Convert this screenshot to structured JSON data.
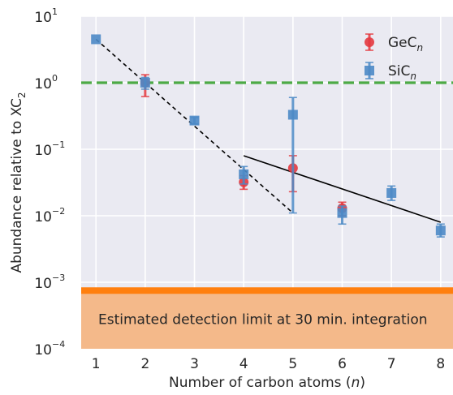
{
  "chart_data": {
    "type": "scatter",
    "xlabel_parts": [
      "Number of carbon atoms (",
      "n",
      ")"
    ],
    "ylabel_parts": [
      "Abundance relative to XC",
      "2"
    ],
    "x": [
      1,
      2,
      3,
      4,
      5,
      6,
      7,
      8
    ],
    "xlim": [
      0.7,
      8.25
    ],
    "ylim": [
      0.0001,
      10
    ],
    "yscale": "log",
    "grid": true,
    "legend_position": "top-right",
    "y_ticks": [
      {
        "value": 10,
        "base": "10",
        "exp": "1"
      },
      {
        "value": 1,
        "base": "10",
        "exp": "0"
      },
      {
        "value": 0.1,
        "base": "10",
        "exp": "−1"
      },
      {
        "value": 0.01,
        "base": "10",
        "exp": "−2"
      },
      {
        "value": 0.001,
        "base": "10",
        "exp": "−3"
      },
      {
        "value": 0.0001,
        "base": "10",
        "exp": "−4"
      }
    ],
    "x_ticks": [
      "1",
      "2",
      "3",
      "4",
      "5",
      "6",
      "7",
      "8"
    ],
    "series": [
      {
        "name_parts": [
          "GeC",
          "n"
        ],
        "marker": "circle",
        "color": "#e4393f",
        "points": [
          {
            "x": 2,
            "y": 1.0,
            "err_lo": 0.62,
            "err_hi": 1.32
          },
          {
            "x": 4,
            "y": 0.032,
            "err_lo": 0.025,
            "err_hi": 0.04
          },
          {
            "x": 5,
            "y": 0.052,
            "err_lo": 0.023,
            "err_hi": 0.08
          },
          {
            "x": 6,
            "y": 0.013,
            "err_lo": 0.01,
            "err_hi": 0.016
          }
        ]
      },
      {
        "name_parts": [
          "SiC",
          "n"
        ],
        "marker": "square",
        "color": "#4c8ac6",
        "points": [
          {
            "x": 1,
            "y": 4.5,
            "err_lo": 4.5,
            "err_hi": 4.5
          },
          {
            "x": 2,
            "y": 1.0,
            "err_lo": 0.8,
            "err_hi": 1.2
          },
          {
            "x": 3,
            "y": 0.27,
            "err_lo": 0.24,
            "err_hi": 0.3
          },
          {
            "x": 4,
            "y": 0.042,
            "err_lo": 0.03,
            "err_hi": 0.055
          },
          {
            "x": 5,
            "y": 0.33,
            "err_lo": 0.011,
            "err_hi": 0.6
          },
          {
            "x": 6,
            "y": 0.011,
            "err_lo": 0.0075,
            "err_hi": 0.014
          },
          {
            "x": 7,
            "y": 0.022,
            "err_lo": 0.017,
            "err_hi": 0.028
          },
          {
            "x": 8,
            "y": 0.006,
            "err_lo": 0.0048,
            "err_hi": 0.0075
          }
        ]
      }
    ],
    "reference_line": {
      "y": 1.0,
      "style": "dashed",
      "color": "#4daa46"
    },
    "fit_lines": [
      {
        "style": "dashed",
        "color": "#000000",
        "x": [
          1,
          5
        ],
        "y": [
          4.5,
          0.011
        ]
      },
      {
        "style": "solid",
        "color": "#000000",
        "x": [
          4,
          8
        ],
        "y": [
          0.08,
          0.008
        ]
      }
    ],
    "detection_band": {
      "y_top": 0.00075,
      "y_bottom": 0.0001,
      "line_color": "#ff7f0e",
      "fill_color": "#f4b98a",
      "label": "Estimated detection limit at 30 min. integration"
    },
    "colors": {
      "plot_background": "#eaeaf2",
      "grid": "#ffffff",
      "text": "#262626"
    }
  }
}
